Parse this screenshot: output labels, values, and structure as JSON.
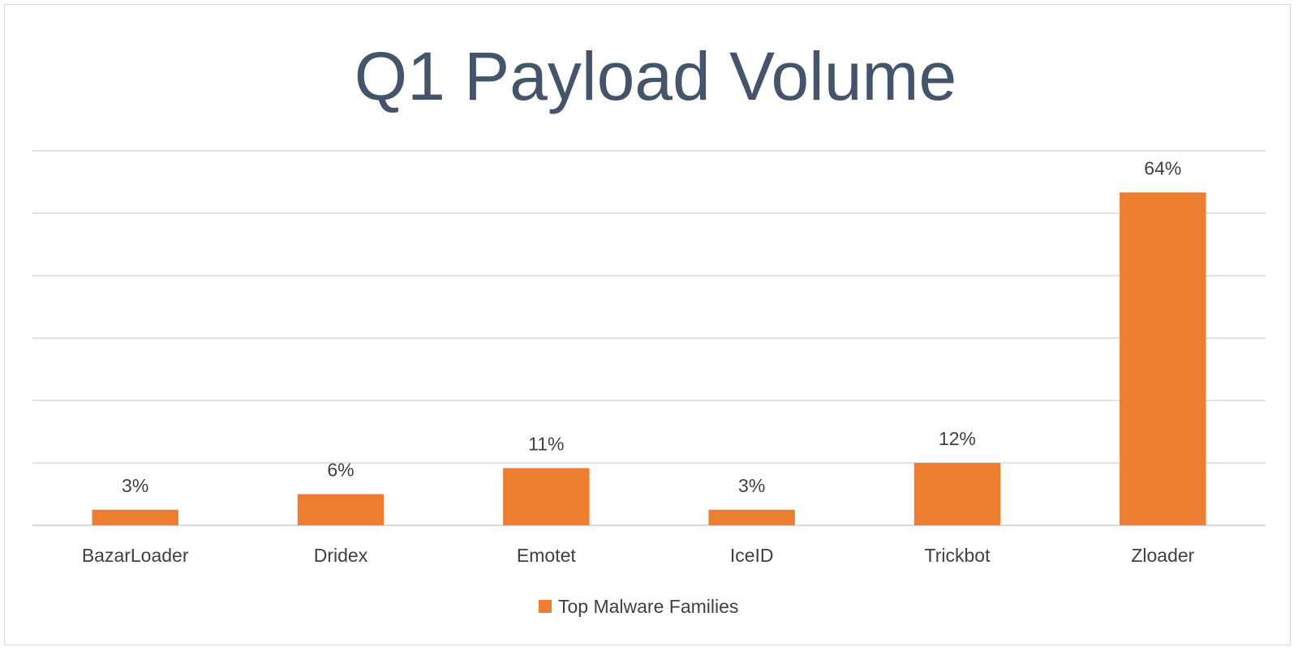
{
  "chart_data": {
    "type": "bar",
    "title": "Q1 Payload Volume",
    "categories": [
      "BazarLoader",
      "Dridex",
      "Emotet",
      "IceID",
      "Trickbot",
      "Zloader"
    ],
    "series": [
      {
        "name": "Top Malware Families",
        "values": [
          3,
          6,
          11,
          3,
          12,
          64
        ],
        "labels": [
          "3%",
          "6%",
          "11%",
          "3%",
          "12%",
          "64%"
        ],
        "color": "#ed7d31"
      }
    ],
    "ylim": [
      0,
      72
    ],
    "grid": true,
    "legend_position": "bottom"
  }
}
